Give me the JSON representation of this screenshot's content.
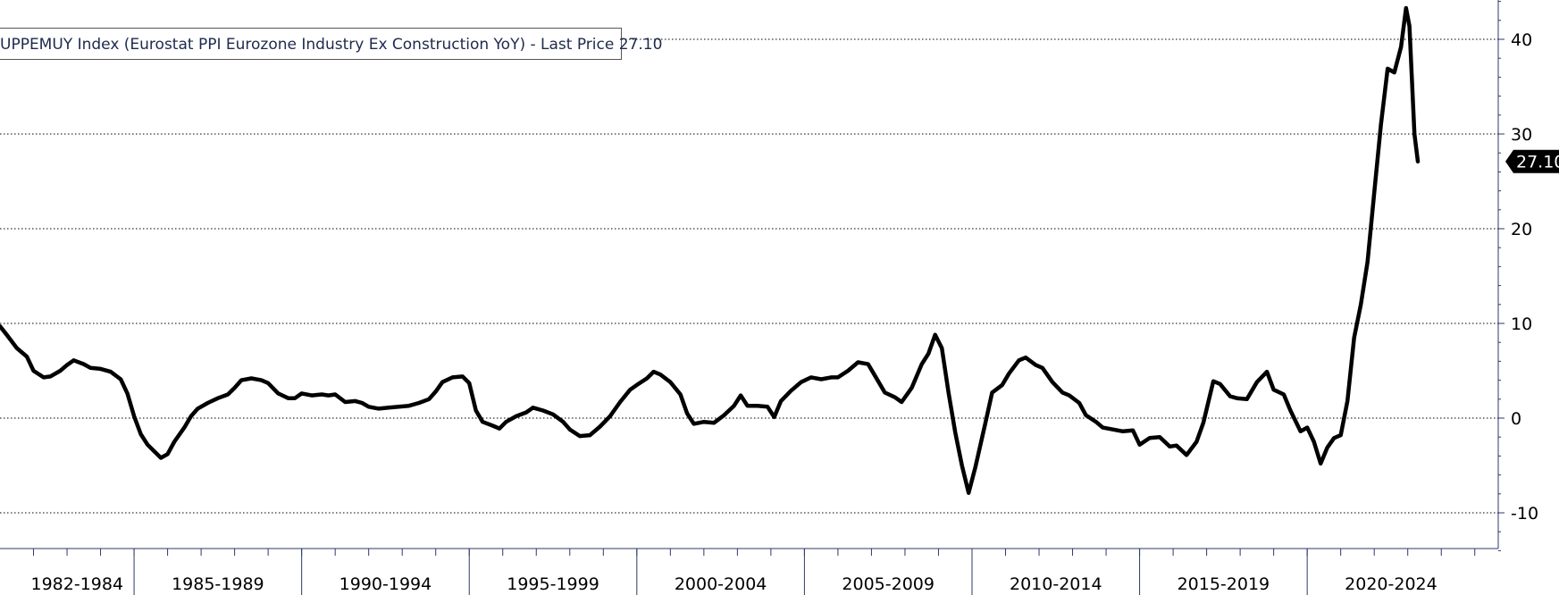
{
  "legend": {
    "text": "UPPEMUY Index (Eurostat PPI Eurozone Industry Ex Construction YoY) - Last Price 27.10"
  },
  "last_price_label": "27.10",
  "colors": {
    "line": "#000000",
    "grid": "#000000",
    "axis": "#2b3a67",
    "label_bg": "#000000"
  },
  "chart_data": {
    "type": "line",
    "title": "",
    "xlabel": "",
    "ylabel": "",
    "ylim": [
      -14,
      44
    ],
    "xlim": [
      1981.0,
      2025.7
    ],
    "y_ticks": [
      -10,
      0,
      10,
      20,
      30,
      40
    ],
    "grid": true,
    "y_axis_side": "right",
    "x_tick_labels": [
      {
        "label": "1982-1984",
        "center": 1983.3
      },
      {
        "label": "1985-1989",
        "center": 1987.5
      },
      {
        "label": "1990-1994",
        "center": 1992.5
      },
      {
        "label": "1995-1999",
        "center": 1997.5
      },
      {
        "label": "2000-2004",
        "center": 2002.5
      },
      {
        "label": "2005-2009",
        "center": 2007.5
      },
      {
        "label": "2010-2014",
        "center": 2012.5
      },
      {
        "label": "2015-2019",
        "center": 2017.5
      },
      {
        "label": "2020-2024",
        "center": 2022.5
      }
    ],
    "x_separators": [
      1985.0,
      1990.0,
      1995.0,
      2000.0,
      2005.0,
      2010.0,
      2015.0,
      2020.0
    ],
    "series": [
      {
        "name": "UPPEMUY Index",
        "last_value": 27.1,
        "points": [
          [
            1981.0,
            9.7
          ],
          [
            1981.2,
            8.8
          ],
          [
            1981.5,
            7.4
          ],
          [
            1981.8,
            6.5
          ],
          [
            1982.0,
            5.0
          ],
          [
            1982.3,
            4.3
          ],
          [
            1982.5,
            4.4
          ],
          [
            1982.8,
            5.0
          ],
          [
            1983.0,
            5.6
          ],
          [
            1983.2,
            6.1
          ],
          [
            1983.5,
            5.7
          ],
          [
            1983.7,
            5.3
          ],
          [
            1984.0,
            5.2
          ],
          [
            1984.3,
            4.9
          ],
          [
            1984.6,
            4.1
          ],
          [
            1984.8,
            2.6
          ],
          [
            1985.0,
            0.2
          ],
          [
            1985.2,
            -1.7
          ],
          [
            1985.4,
            -2.8
          ],
          [
            1985.6,
            -3.5
          ],
          [
            1985.8,
            -4.2
          ],
          [
            1986.0,
            -3.8
          ],
          [
            1986.2,
            -2.5
          ],
          [
            1986.5,
            -1.0
          ],
          [
            1986.7,
            0.2
          ],
          [
            1986.9,
            1.0
          ],
          [
            1987.2,
            1.6
          ],
          [
            1987.5,
            2.1
          ],
          [
            1987.8,
            2.5
          ],
          [
            1988.0,
            3.2
          ],
          [
            1988.2,
            4.0
          ],
          [
            1988.5,
            4.2
          ],
          [
            1988.8,
            4.0
          ],
          [
            1989.0,
            3.7
          ],
          [
            1989.3,
            2.6
          ],
          [
            1989.6,
            2.1
          ],
          [
            1989.8,
            2.1
          ],
          [
            1990.0,
            2.6
          ],
          [
            1990.3,
            2.4
          ],
          [
            1990.6,
            2.5
          ],
          [
            1990.8,
            2.4
          ],
          [
            1991.0,
            2.5
          ],
          [
            1991.3,
            1.7
          ],
          [
            1991.6,
            1.8
          ],
          [
            1991.8,
            1.6
          ],
          [
            1992.0,
            1.2
          ],
          [
            1992.3,
            1.0
          ],
          [
            1992.6,
            1.1
          ],
          [
            1992.9,
            1.2
          ],
          [
            1993.2,
            1.3
          ],
          [
            1993.5,
            1.6
          ],
          [
            1993.8,
            2.0
          ],
          [
            1994.0,
            2.8
          ],
          [
            1994.2,
            3.8
          ],
          [
            1994.5,
            4.3
          ],
          [
            1994.8,
            4.4
          ],
          [
            1995.0,
            3.7
          ],
          [
            1995.2,
            0.8
          ],
          [
            1995.4,
            -0.4
          ],
          [
            1995.7,
            -0.8
          ],
          [
            1995.9,
            -1.1
          ],
          [
            1996.1,
            -0.4
          ],
          [
            1996.4,
            0.2
          ],
          [
            1996.7,
            0.6
          ],
          [
            1996.9,
            1.1
          ],
          [
            1997.2,
            0.8
          ],
          [
            1997.5,
            0.4
          ],
          [
            1997.8,
            -0.4
          ],
          [
            1998.0,
            -1.2
          ],
          [
            1998.3,
            -1.9
          ],
          [
            1998.6,
            -1.8
          ],
          [
            1998.9,
            -0.9
          ],
          [
            1999.2,
            0.2
          ],
          [
            1999.5,
            1.7
          ],
          [
            1999.8,
            3.0
          ],
          [
            2000.0,
            3.5
          ],
          [
            2000.3,
            4.2
          ],
          [
            2000.5,
            4.9
          ],
          [
            2000.7,
            4.6
          ],
          [
            2001.0,
            3.8
          ],
          [
            2001.3,
            2.5
          ],
          [
            2001.5,
            0.5
          ],
          [
            2001.7,
            -0.6
          ],
          [
            2002.0,
            -0.4
          ],
          [
            2002.3,
            -0.5
          ],
          [
            2002.6,
            0.3
          ],
          [
            2002.9,
            1.3
          ],
          [
            2003.1,
            2.4
          ],
          [
            2003.3,
            1.3
          ],
          [
            2003.6,
            1.3
          ],
          [
            2003.9,
            1.2
          ],
          [
            2004.1,
            0.1
          ],
          [
            2004.3,
            1.8
          ],
          [
            2004.6,
            2.9
          ],
          [
            2004.9,
            3.8
          ],
          [
            2005.2,
            4.3
          ],
          [
            2005.5,
            4.1
          ],
          [
            2005.8,
            4.3
          ],
          [
            2006.0,
            4.3
          ],
          [
            2006.3,
            5.0
          ],
          [
            2006.6,
            5.9
          ],
          [
            2006.9,
            5.7
          ],
          [
            2007.1,
            4.5
          ],
          [
            2007.4,
            2.7
          ],
          [
            2007.7,
            2.2
          ],
          [
            2007.9,
            1.7
          ],
          [
            2008.2,
            3.2
          ],
          [
            2008.5,
            5.7
          ],
          [
            2008.7,
            6.8
          ],
          [
            2008.9,
            8.8
          ],
          [
            2009.1,
            7.4
          ],
          [
            2009.3,
            2.7
          ],
          [
            2009.5,
            -1.5
          ],
          [
            2009.7,
            -5.0
          ],
          [
            2009.9,
            -7.9
          ],
          [
            2010.1,
            -5.2
          ],
          [
            2010.4,
            -0.5
          ],
          [
            2010.6,
            2.7
          ],
          [
            2010.9,
            3.5
          ],
          [
            2011.1,
            4.7
          ],
          [
            2011.4,
            6.1
          ],
          [
            2011.6,
            6.4
          ],
          [
            2011.9,
            5.6
          ],
          [
            2012.1,
            5.3
          ],
          [
            2012.4,
            3.8
          ],
          [
            2012.7,
            2.7
          ],
          [
            2012.9,
            2.4
          ],
          [
            2013.2,
            1.6
          ],
          [
            2013.4,
            0.3
          ],
          [
            2013.7,
            -0.4
          ],
          [
            2013.9,
            -1.0
          ],
          [
            2014.2,
            -1.2
          ],
          [
            2014.5,
            -1.4
          ],
          [
            2014.8,
            -1.3
          ],
          [
            2015.0,
            -2.8
          ],
          [
            2015.3,
            -2.1
          ],
          [
            2015.6,
            -2.0
          ],
          [
            2015.9,
            -3.0
          ],
          [
            2016.1,
            -2.9
          ],
          [
            2016.4,
            -3.9
          ],
          [
            2016.7,
            -2.5
          ],
          [
            2016.9,
            -0.5
          ],
          [
            2017.2,
            3.9
          ],
          [
            2017.4,
            3.6
          ],
          [
            2017.7,
            2.3
          ],
          [
            2017.9,
            2.1
          ],
          [
            2018.2,
            2.0
          ],
          [
            2018.5,
            3.8
          ],
          [
            2018.8,
            4.9
          ],
          [
            2019.0,
            3.0
          ],
          [
            2019.3,
            2.5
          ],
          [
            2019.5,
            0.8
          ],
          [
            2019.8,
            -1.4
          ],
          [
            2020.0,
            -1.0
          ],
          [
            2020.2,
            -2.5
          ],
          [
            2020.4,
            -4.8
          ],
          [
            2020.6,
            -3.1
          ],
          [
            2020.8,
            -2.1
          ],
          [
            2021.0,
            -1.8
          ],
          [
            2021.2,
            1.8
          ],
          [
            2021.4,
            8.5
          ],
          [
            2021.6,
            12.0
          ],
          [
            2021.8,
            16.5
          ],
          [
            2022.0,
            23.8
          ],
          [
            2022.2,
            31.0
          ],
          [
            2022.4,
            36.9
          ],
          [
            2022.6,
            36.5
          ],
          [
            2022.8,
            39.2
          ],
          [
            2022.95,
            43.3
          ],
          [
            2023.05,
            41.4
          ],
          [
            2023.2,
            30.0
          ],
          [
            2023.3,
            27.1
          ]
        ]
      }
    ]
  }
}
